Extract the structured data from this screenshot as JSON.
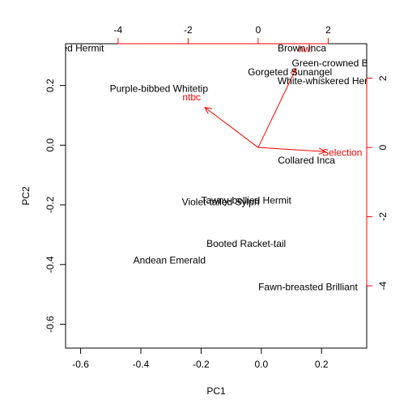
{
  "chart_data": {
    "type": "scatter",
    "title": "",
    "xlabel": "PC1",
    "ylabel": "PC2",
    "xlim": [
      -0.65,
      0.35
    ],
    "ylim": [
      -0.68,
      0.34
    ],
    "xticks": [
      "-0.6",
      "-0.4",
      "-0.2",
      "0.0",
      "0.2"
    ],
    "xtick_values": [
      -0.6,
      -0.4,
      -0.2,
      0.0,
      0.2
    ],
    "yticks": [
      "-0.6",
      "-0.4",
      "-0.2",
      "0.0",
      "0.2"
    ],
    "ytick_values": [
      -0.6,
      -0.4,
      -0.2,
      0.0,
      0.2
    ],
    "top_xticks": [
      "-4",
      "-2",
      "0",
      "2"
    ],
    "top_xtick_values": [
      -4,
      -2,
      0,
      2
    ],
    "right_yticks": [
      "-4",
      "-2",
      "0",
      "2"
    ],
    "right_ytick_values": [
      -4,
      -2,
      0,
      2
    ],
    "points": [
      {
        "label": "Bronze-throated Hermit",
        "x": -0.69,
        "y": 0.325
      },
      {
        "label": "Purple-bibbed Whitetip",
        "x": -0.34,
        "y": 0.19
      },
      {
        "label": "Brown Inca",
        "x": 0.135,
        "y": 0.325
      },
      {
        "label": "Green-crowned Brilliant",
        "x": 0.27,
        "y": 0.275
      },
      {
        "label": "Gorgeted Sunangel",
        "x": 0.095,
        "y": 0.245
      },
      {
        "label": "White-whiskered Hermit",
        "x": 0.225,
        "y": 0.215
      },
      {
        "label": "Collared Inca",
        "x": 0.15,
        "y": -0.05
      },
      {
        "label": "Tawny-bellied Hermit",
        "x": -0.05,
        "y": -0.185
      },
      {
        "label": "Violet-tailed Sylph",
        "x": -0.135,
        "y": -0.19
      },
      {
        "label": "Booted Racket-tail",
        "x": -0.05,
        "y": -0.33
      },
      {
        "label": "Andean Emerald",
        "x": -0.305,
        "y": -0.385
      },
      {
        "label": "Fawn-breasted Brilliant",
        "x": 0.155,
        "y": -0.475
      }
    ],
    "loadings": [
      {
        "label": "hwl",
        "x": 1.35,
        "y": 2.85
      },
      {
        "label": "ntbc",
        "x": -1.9,
        "y": 1.45
      },
      {
        "label": "Selection",
        "x": 2.4,
        "y": -0.15
      }
    ],
    "loadings_xlim": [
      -5.5,
      3.1
    ],
    "loadings_ylim": [
      -5.8,
      3.0
    ]
  }
}
